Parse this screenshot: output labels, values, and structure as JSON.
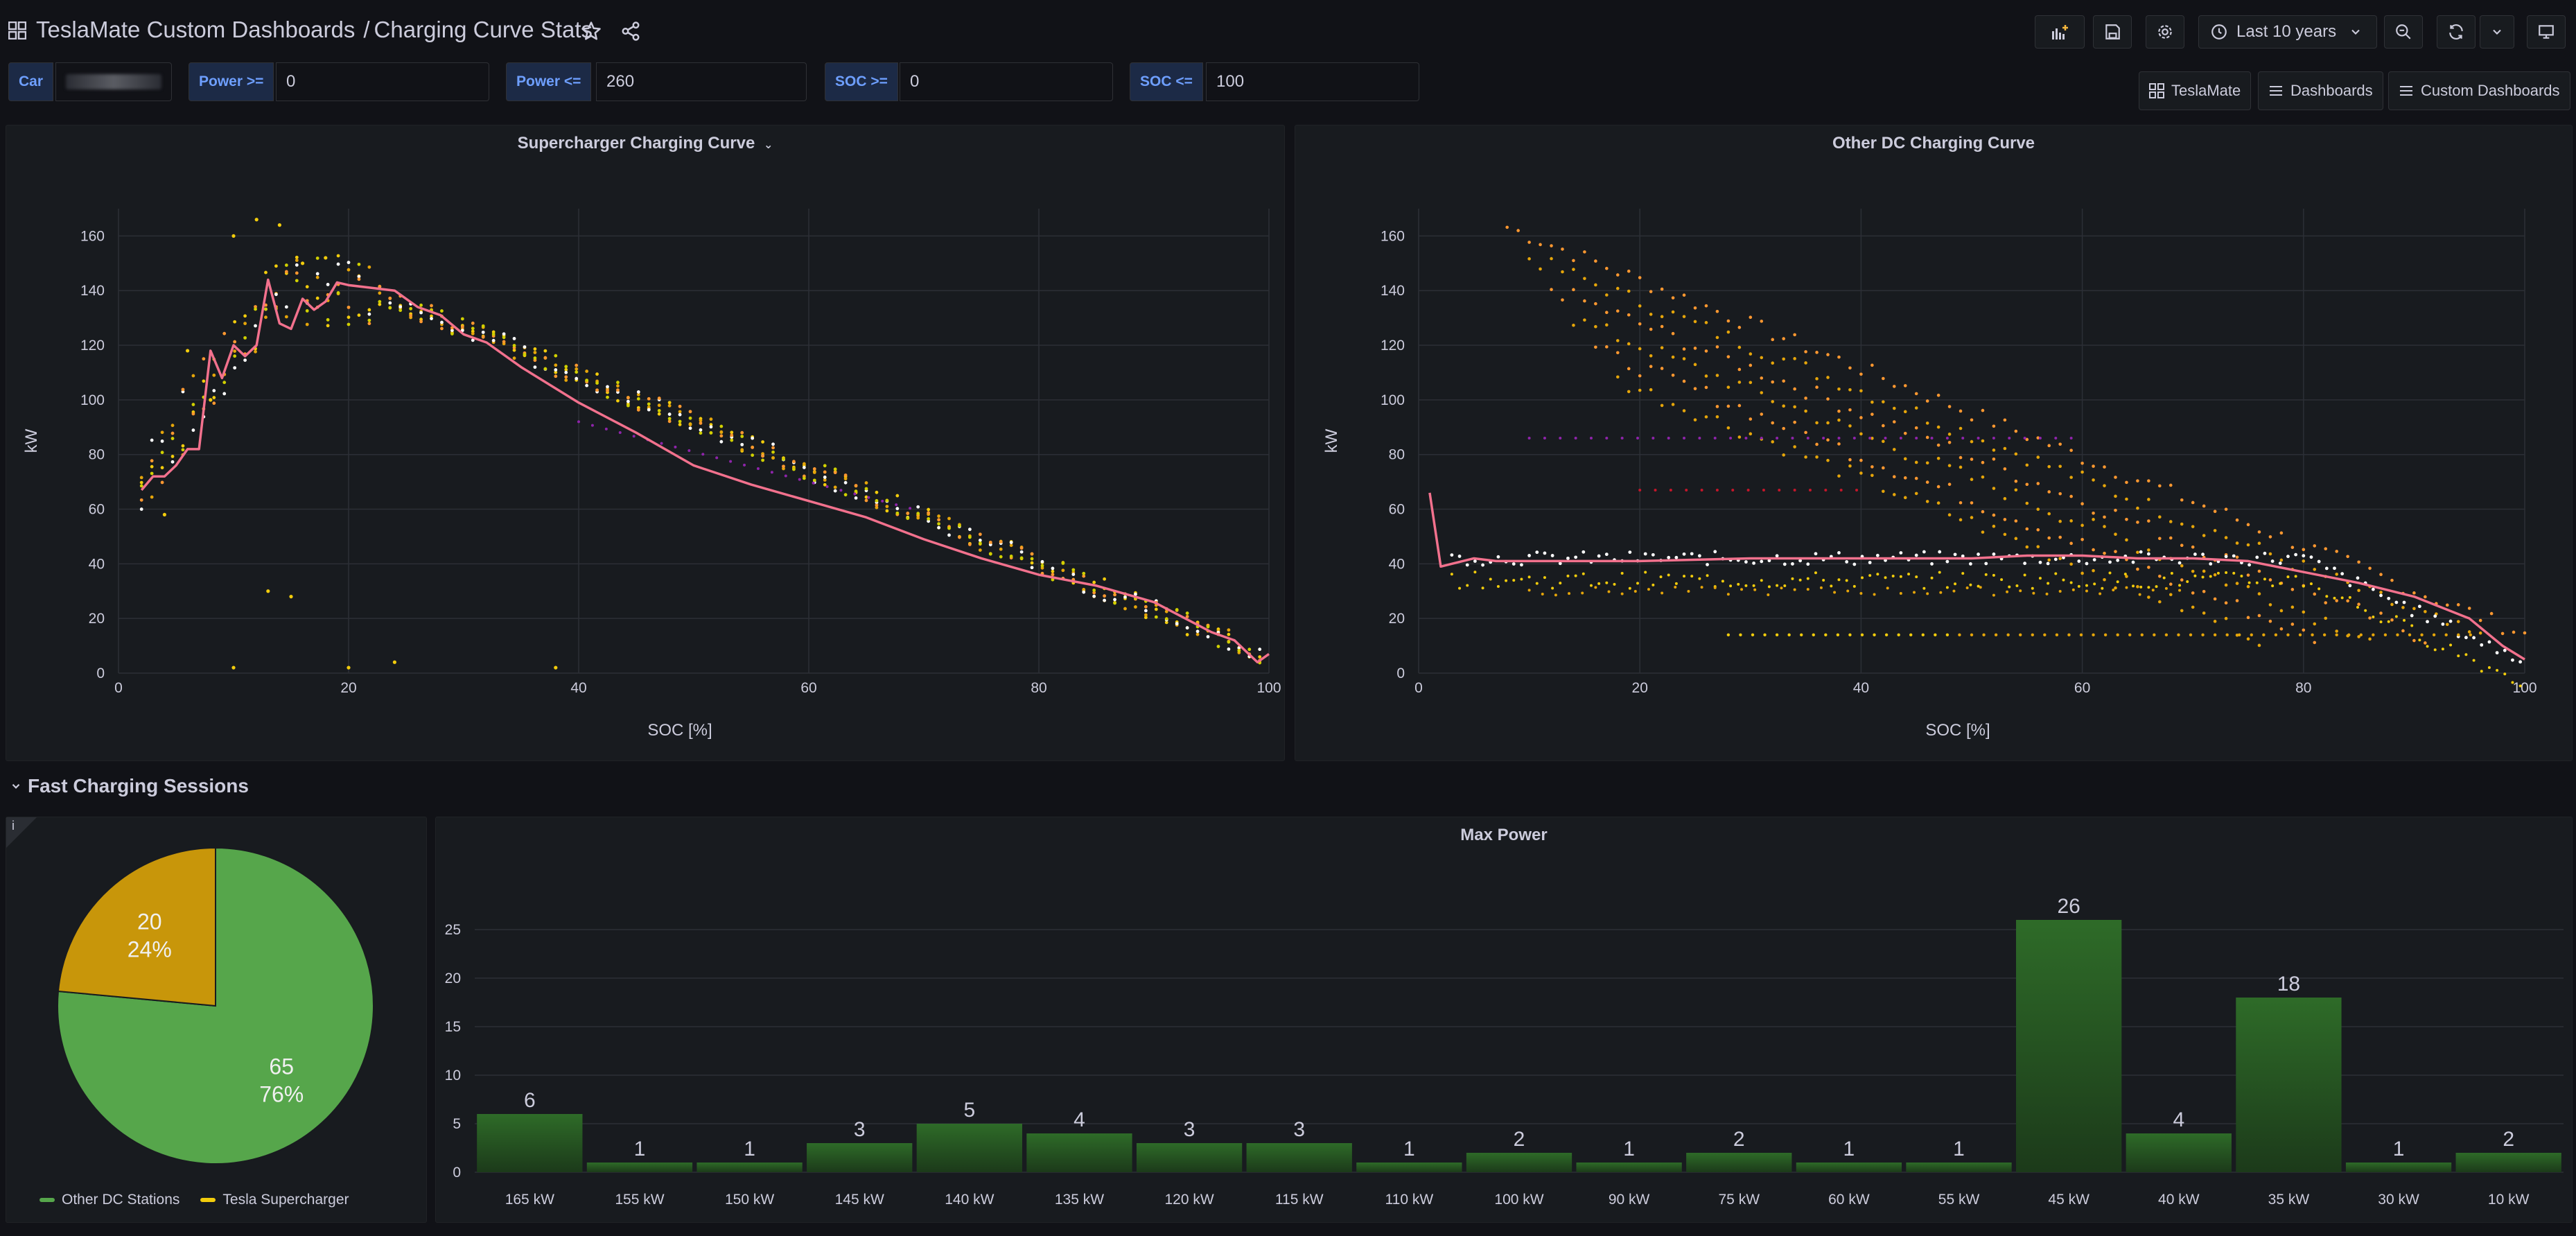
{
  "header": {
    "breadcrumb_parent": "TeslaMate Custom Dashboards",
    "breadcrumb_separator": "/",
    "page_title": "Charging Curve Stats",
    "time_range": "Last 10 years"
  },
  "variables": {
    "car_label": "Car",
    "power_min_label": "Power >=",
    "power_min_value": "0",
    "power_max_label": "Power <=",
    "power_max_value": "260",
    "soc_min_label": "SOC >=",
    "soc_min_value": "0",
    "soc_max_label": "SOC <=",
    "soc_max_value": "100"
  },
  "links": {
    "teslamate": "TeslaMate",
    "dashboards": "Dashboards",
    "custom_dashboards": "Custom Dashboards"
  },
  "colors": {
    "background": "#111217",
    "panel": "#181b1f",
    "accent_blue": "#6e9fff",
    "median_line": "#f2718d",
    "pie_green": "#56a64b",
    "pie_yellow": "#c8960a",
    "bar_green": "#2b5c26"
  },
  "panels": {
    "supercharger": {
      "title": "Supercharger Charging Curve",
      "xlabel": "SOC [%]",
      "ylabel": "kW"
    },
    "other_dc": {
      "title": "Other DC Charging Curve",
      "xlabel": "SOC [%]",
      "ylabel": "kW"
    },
    "row_title": "Fast Charging Sessions",
    "pie": {
      "legend_other": "Other DC Stations",
      "legend_tesla": "Tesla Supercharger"
    },
    "max_power": {
      "title": "Max Power"
    }
  },
  "chart_data": [
    {
      "type": "scatter",
      "name": "Supercharger Charging Curve",
      "title": "Supercharger Charging Curve",
      "xlabel": "SOC [%]",
      "ylabel": "kW",
      "xlim": [
        0,
        100
      ],
      "ylim": [
        0,
        170
      ],
      "x_ticks": [
        0,
        20,
        40,
        60,
        80,
        100
      ],
      "y_ticks": [
        0,
        20,
        40,
        60,
        80,
        100,
        120,
        140,
        160
      ],
      "median_line": {
        "x": [
          2,
          3,
          4,
          5,
          6,
          7,
          8,
          9,
          10,
          11,
          12,
          13,
          14,
          15,
          16,
          17,
          18,
          19,
          20,
          22,
          24,
          26,
          28,
          30,
          32,
          35,
          40,
          45,
          50,
          55,
          60,
          65,
          70,
          75,
          80,
          85,
          90,
          95,
          97,
          98,
          99,
          100
        ],
        "y": [
          67,
          72,
          72,
          76,
          82,
          82,
          118,
          108,
          120,
          116,
          120,
          144,
          128,
          126,
          137,
          133,
          136,
          143,
          142,
          141,
          140,
          134,
          131,
          124,
          121,
          112,
          99,
          88,
          76,
          69,
          63,
          57,
          49,
          42,
          36,
          32,
          26,
          15,
          12,
          8,
          4,
          7
        ]
      }
    },
    {
      "type": "scatter",
      "name": "Other DC Charging Curve",
      "title": "Other DC Charging Curve",
      "xlabel": "SOC [%]",
      "ylabel": "kW",
      "xlim": [
        0,
        100
      ],
      "ylim": [
        0,
        170
      ],
      "x_ticks": [
        0,
        20,
        40,
        60,
        80,
        100
      ],
      "y_ticks": [
        0,
        20,
        40,
        60,
        80,
        100,
        120,
        140,
        160
      ],
      "median_line": {
        "x": [
          1,
          2,
          3,
          5,
          7,
          10,
          20,
          30,
          40,
          50,
          55,
          60,
          65,
          70,
          75,
          80,
          85,
          90,
          95,
          98,
          100
        ],
        "y": [
          66,
          39,
          40,
          42,
          41,
          41,
          41,
          42,
          42,
          42,
          43,
          43,
          42,
          42,
          41,
          37,
          33,
          28,
          20,
          10,
          5
        ]
      }
    },
    {
      "type": "pie",
      "name": "Fast Charging Sessions",
      "labels": [
        "Other DC Stations",
        "Tesla Supercharger"
      ],
      "values": [
        65,
        20
      ],
      "percent": [
        "76%",
        "24%"
      ]
    },
    {
      "type": "bar",
      "name": "Max Power",
      "title": "Max Power",
      "categories": [
        "165 kW",
        "155 kW",
        "150 kW",
        "145 kW",
        "140 kW",
        "135 kW",
        "120 kW",
        "115 kW",
        "110 kW",
        "100 kW",
        "90 kW",
        "75 kW",
        "60 kW",
        "55 kW",
        "45 kW",
        "40 kW",
        "35 kW",
        "30 kW",
        "10 kW"
      ],
      "values": [
        6,
        1,
        1,
        3,
        5,
        4,
        3,
        3,
        1,
        2,
        1,
        2,
        1,
        1,
        26,
        4,
        18,
        1,
        2
      ],
      "ylim": [
        0,
        28
      ],
      "y_ticks": [
        0,
        5,
        10,
        15,
        20,
        25
      ]
    }
  ]
}
